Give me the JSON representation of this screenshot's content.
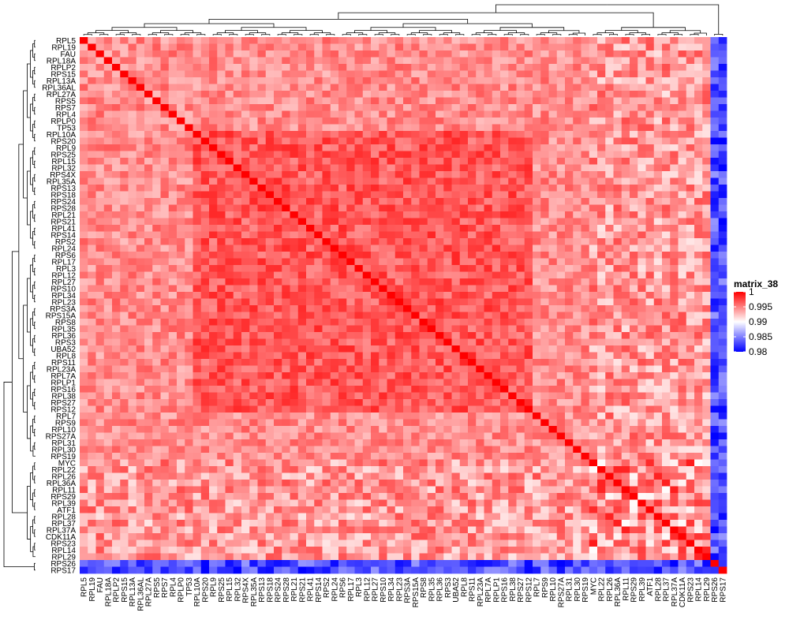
{
  "chart_data": {
    "type": "heatmap",
    "labels": [
      "RPL5",
      "RPL19",
      "FAU",
      "RPL18A",
      "RPLP2",
      "RPS15",
      "RPL13A",
      "RPL36AL",
      "RPL27A",
      "RPS5",
      "RPS7",
      "RPL4",
      "RPLP0",
      "TP53",
      "RPL10A",
      "RPS20",
      "RPL9",
      "RPS25",
      "RPL15",
      "RPL32",
      "RPS4X",
      "RPL35A",
      "RPS13",
      "RPS18",
      "RPS24",
      "RPS28",
      "RPL21",
      "RPS21",
      "RPL41",
      "RPS14",
      "RPS2",
      "RPL24",
      "RPS6",
      "RPL17",
      "RPL3",
      "RPL12",
      "RPL27",
      "RPS10",
      "RPL34",
      "RPL23",
      "RPS3A",
      "RPS15A",
      "RPS8",
      "RPL35",
      "RPL36",
      "RPS3",
      "UBA52",
      "RPL8",
      "RPS11",
      "RPL23A",
      "RPL7A",
      "RPLP1",
      "RPS16",
      "RPL38",
      "RPS27",
      "RPS12",
      "RPL7",
      "RPS9",
      "RPL10",
      "RPS27A",
      "RPL31",
      "RPL30",
      "RPS19",
      "MYC",
      "RPL22",
      "RPL26",
      "RPL36A",
      "RPL11",
      "RPS29",
      "RPL39",
      "ATF1",
      "RPL28",
      "RPL37",
      "RPL37A",
      "CDK11A",
      "RPS23",
      "RPL14",
      "RPL29",
      "RPS26",
      "RPS17"
    ],
    "groups": {
      "core": [
        0,
        62
      ],
      "myc_block": [
        63,
        77
      ],
      "outliers": [
        78,
        79
      ]
    },
    "legend": {
      "title": "matrix_38",
      "ticks": [
        "1",
        "0.995",
        "0.99",
        "0.985",
        "0.98"
      ],
      "tick_values": [
        1,
        0.995,
        0.99,
        0.985,
        0.98
      ],
      "min": 0.98,
      "mid": 0.99,
      "max": 1,
      "colors": {
        "low": "#0000ff",
        "mid": "#ffffff",
        "high": "#ff0000"
      }
    },
    "value_range": [
      0.98,
      1
    ],
    "dendrogram": true,
    "legend_position": "right"
  }
}
